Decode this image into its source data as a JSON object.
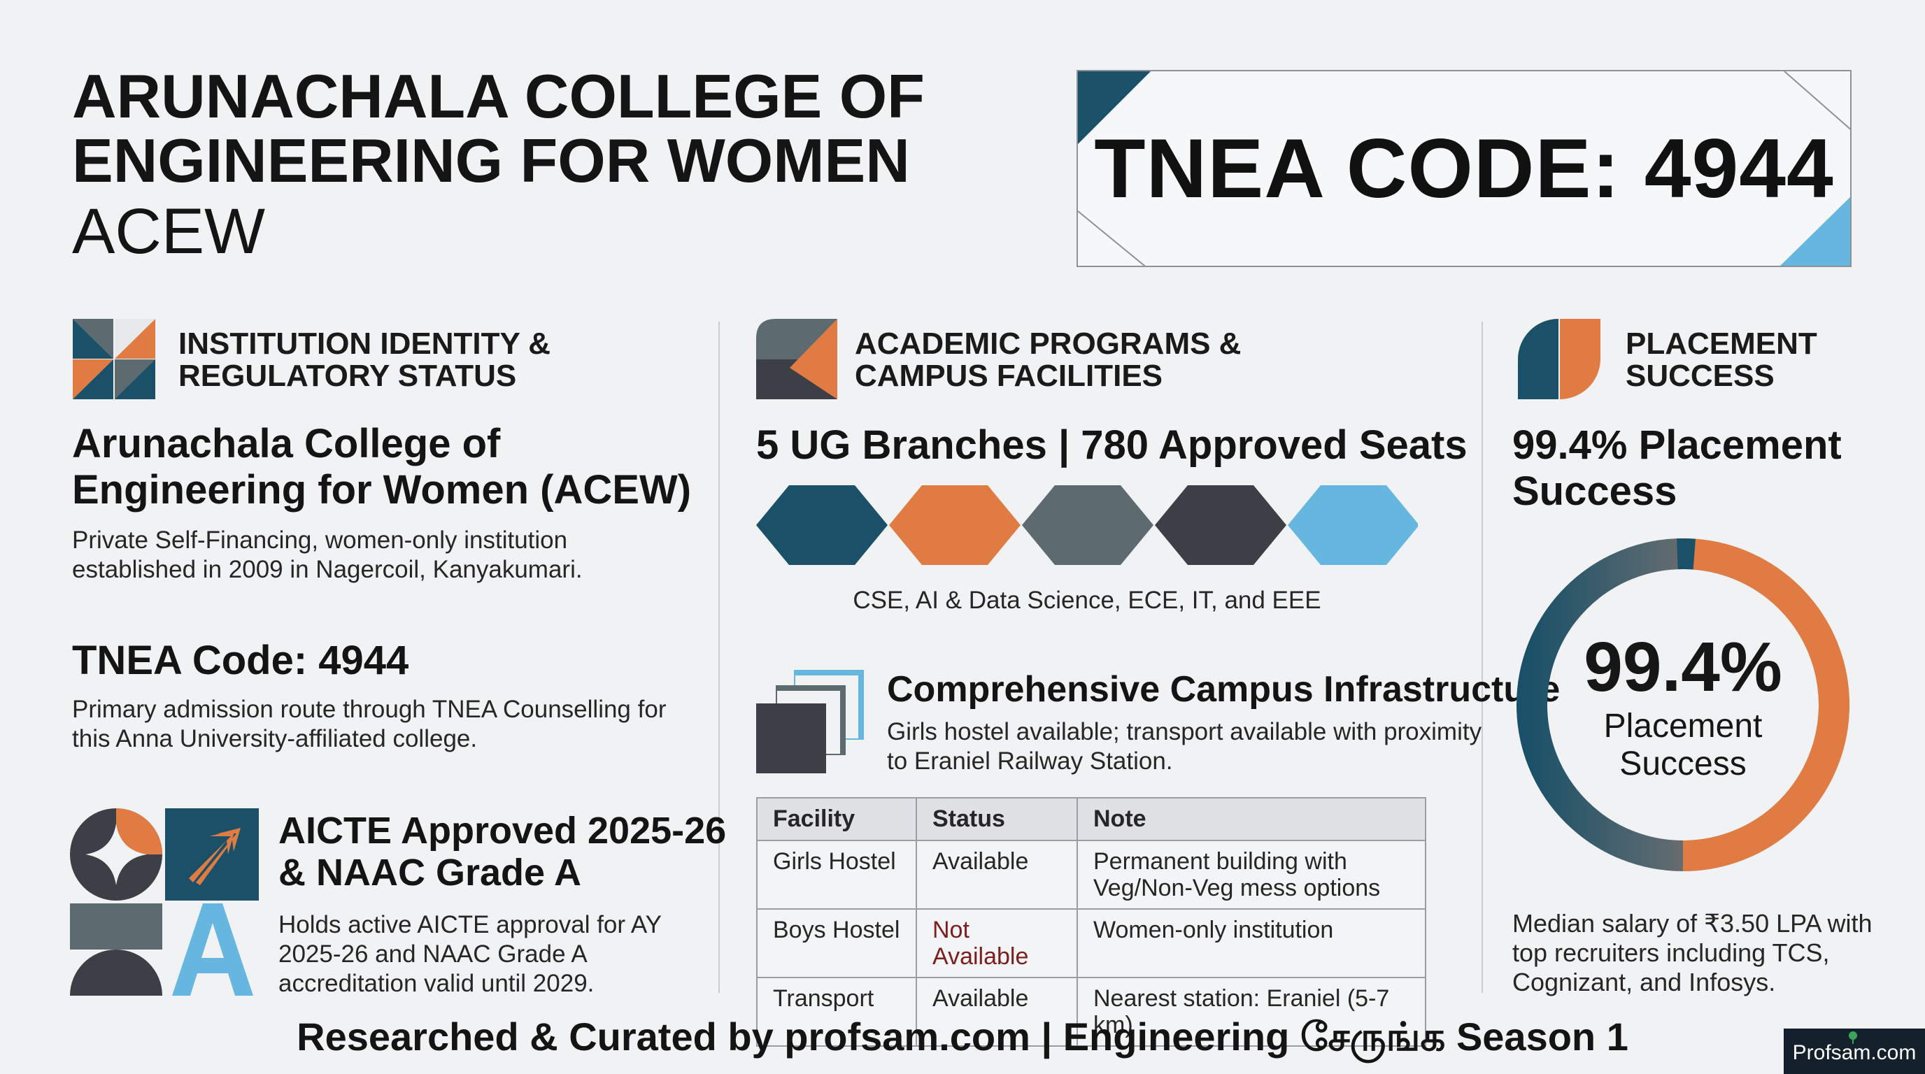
{
  "header": {
    "title": "ARUNACHALA COLLEGE OF ENGINEERING FOR WOMEN",
    "title_line1": "ARUNACHALA COLLEGE OF",
    "title_line2": "ENGINEERING FOR WOMEN",
    "subtitle": "ACEW",
    "code_box": "TNEA CODE: 4944"
  },
  "col1": {
    "heading_line1": "INSTITUTION IDENTITY &",
    "heading_line2": "REGULATORY STATUS",
    "name_line1": "Arunachala College of",
    "name_line2": "Engineering for Women (ACEW)",
    "desc_line1": "Private Self-Financing, women-only institution",
    "desc_line2": "established in 2009 in Nagercoil, Kanyakumari.",
    "code_title": "TNEA Code: 4944",
    "code_desc_line1": "Primary admission route through TNEA Counselling for",
    "code_desc_line2": "this Anna University-affiliated college.",
    "aicte_line1": "AICTE Approved 2025-26",
    "aicte_line2": "& NAAC Grade A",
    "aicte_desc_line1": "Holds active AICTE approval for AY",
    "aicte_desc_line2": "2025-26 and NAAC Grade A",
    "aicte_desc_line3": "accreditation valid until 2029."
  },
  "col2": {
    "heading_line1": "ACADEMIC PROGRAMS &",
    "heading_line2": "CAMPUS FACILITIES",
    "branches_title": "5 UG Branches | 780 Approved Seats",
    "branch_colors": [
      "#1b5168",
      "#e07b43",
      "#5d6a70",
      "#3d3f46",
      "#66b7df"
    ],
    "branches_list": "CSE, AI & Data Science, ECE, IT, and EEE",
    "infra_title": "Comprehensive Campus Infrastructure",
    "infra_desc_line1": "Girls hostel available; transport available with proximity",
    "infra_desc_line2": "to Eraniel Railway Station.",
    "table": {
      "headers": [
        "Facility",
        "Status",
        "Note"
      ],
      "rows": [
        {
          "facility": "Girls Hostel",
          "status": "Available",
          "note_line1": "Permanent building with",
          "note_line2": "Veg/Non-Veg mess options"
        },
        {
          "facility": "Boys Hostel",
          "status": "Not Available",
          "note_line1": "Women-only institution",
          "note_line2": ""
        },
        {
          "facility": "Transport",
          "status": "Available",
          "note_line1": "Nearest station: Eraniel (5-7 km)",
          "note_line2": ""
        }
      ]
    }
  },
  "col3": {
    "heading_line1": "PLACEMENT",
    "heading_line2": "SUCCESS",
    "title_line1": "99.4% Placement",
    "title_line2": "Success",
    "ring_value": "99.4%",
    "ring_percent": 99.4,
    "ring_label_line1": "Placement",
    "ring_label_line2": "Success",
    "desc_line1": "Median salary of ₹3.50 LPA with",
    "desc_line2": "top recruiters including TCS,",
    "desc_line3": "Cognizant, and Infosys."
  },
  "colors": {
    "teal": "#1b5168",
    "orange": "#e07b43",
    "slate": "#5d6a70",
    "charcoal": "#3d3f46",
    "sky": "#66b7df"
  },
  "footer": {
    "text": "Researched & Curated by profsam.com | Engineering சேருங்க Season 1",
    "badge": "Profsam.com"
  }
}
